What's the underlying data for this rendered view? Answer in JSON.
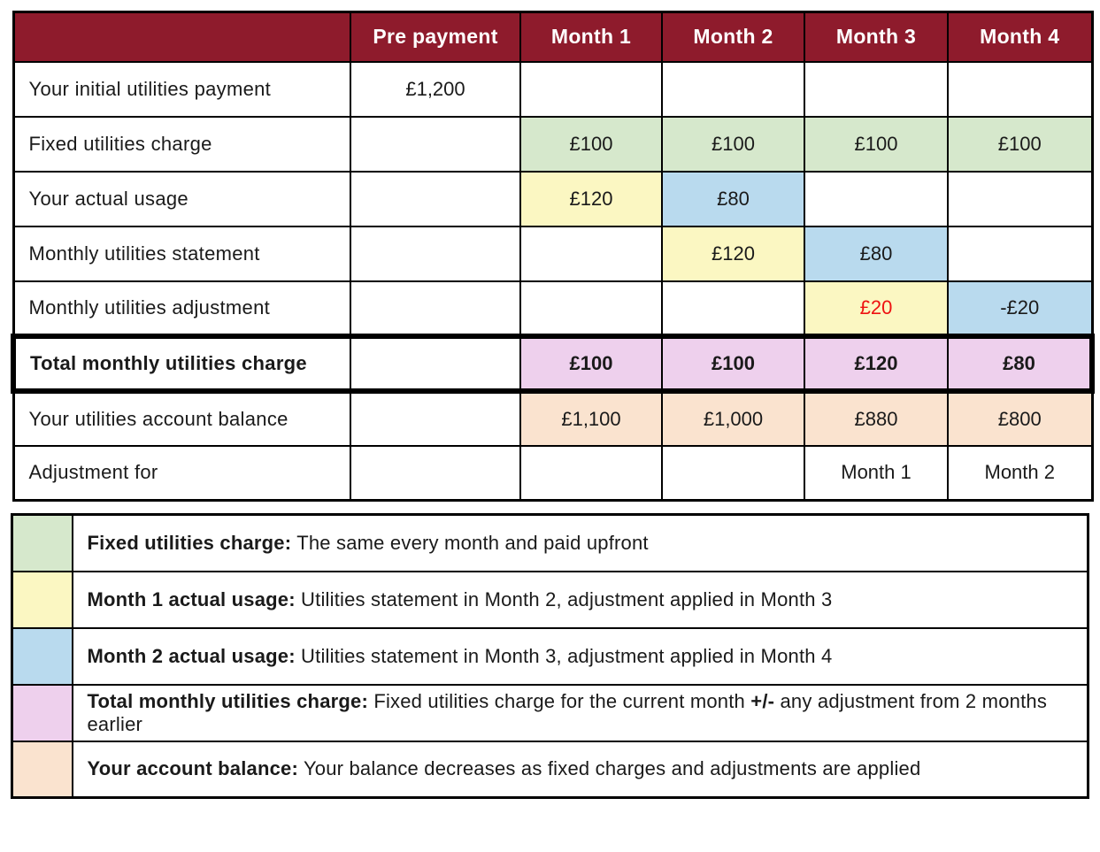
{
  "colors": {
    "maroon": "#8e1b2c",
    "header_text": "#ffffff",
    "green": "#d6e8cc",
    "yellow": "#fbf7c2",
    "blue": "#b9daee",
    "pink": "#eed0ed",
    "peach": "#fae3cf",
    "red": "#ee1111",
    "border": "#000000",
    "white": "#ffffff"
  },
  "table": {
    "columns": [
      "",
      "Pre payment",
      "Month 1",
      "Month 2",
      "Month 3",
      "Month 4"
    ],
    "rows": [
      {
        "label": "Your initial utilities payment",
        "emphasis": false,
        "cells": [
          {
            "text": "£1,200"
          },
          {},
          {},
          {},
          {}
        ]
      },
      {
        "label": "Fixed utilities charge",
        "emphasis": false,
        "cells": [
          {},
          {
            "text": "£100",
            "bg": "green"
          },
          {
            "text": "£100",
            "bg": "green"
          },
          {
            "text": "£100",
            "bg": "green"
          },
          {
            "text": "£100",
            "bg": "green"
          }
        ]
      },
      {
        "label": "Your actual usage",
        "emphasis": false,
        "cells": [
          {},
          {
            "text": "£120",
            "bg": "yellow"
          },
          {
            "text": "£80",
            "bg": "blue"
          },
          {},
          {}
        ]
      },
      {
        "label": "Monthly utilities statement",
        "emphasis": false,
        "cells": [
          {},
          {},
          {
            "text": "£120",
            "bg": "yellow"
          },
          {
            "text": "£80",
            "bg": "blue"
          },
          {}
        ]
      },
      {
        "label": "Monthly utilities adjustment",
        "emphasis": false,
        "cells": [
          {},
          {},
          {},
          {
            "text": "£20",
            "bg": "yellow",
            "color": "red"
          },
          {
            "text": "-£20",
            "bg": "blue"
          }
        ]
      },
      {
        "label": "Total monthly utilities charge",
        "emphasis": true,
        "cells": [
          {},
          {
            "text": "£100",
            "bg": "pink"
          },
          {
            "text": "£100",
            "bg": "pink"
          },
          {
            "text": "£120",
            "bg": "pink"
          },
          {
            "text": "£80",
            "bg": "pink"
          }
        ]
      },
      {
        "label": "Your utilities account balance",
        "emphasis": false,
        "cells": [
          {},
          {
            "text": "£1,100",
            "bg": "peach"
          },
          {
            "text": "£1,000",
            "bg": "peach"
          },
          {
            "text": "£880",
            "bg": "peach"
          },
          {
            "text": "£800",
            "bg": "peach"
          }
        ]
      },
      {
        "label": "Adjustment for",
        "emphasis": false,
        "cells": [
          {},
          {},
          {},
          {
            "text": "Month 1"
          },
          {
            "text": "Month 2"
          }
        ]
      }
    ]
  },
  "legend": {
    "rows": [
      {
        "swatch": "green",
        "lead": "Fixed utilities charge:",
        "text": "The same every month and paid upfront"
      },
      {
        "swatch": "yellow",
        "lead": "Month 1 actual usage:",
        "text": "Utilities statement in Month 2, adjustment applied in Month 3"
      },
      {
        "swatch": "blue",
        "lead": "Month 2 actual usage:",
        "text": "Utilities statement in Month 3, adjustment applied in Month 4"
      },
      {
        "swatch": "pink",
        "lead": "Total monthly utilities charge:",
        "text": "Fixed utilities charge for the current month",
        "bold_mid": "+/-",
        "text_after": "any adjustment from 2 months earlier"
      },
      {
        "swatch": "peach",
        "lead": "Your account balance:",
        "text": "Your balance decreases as fixed charges and adjustments are applied"
      }
    ]
  }
}
